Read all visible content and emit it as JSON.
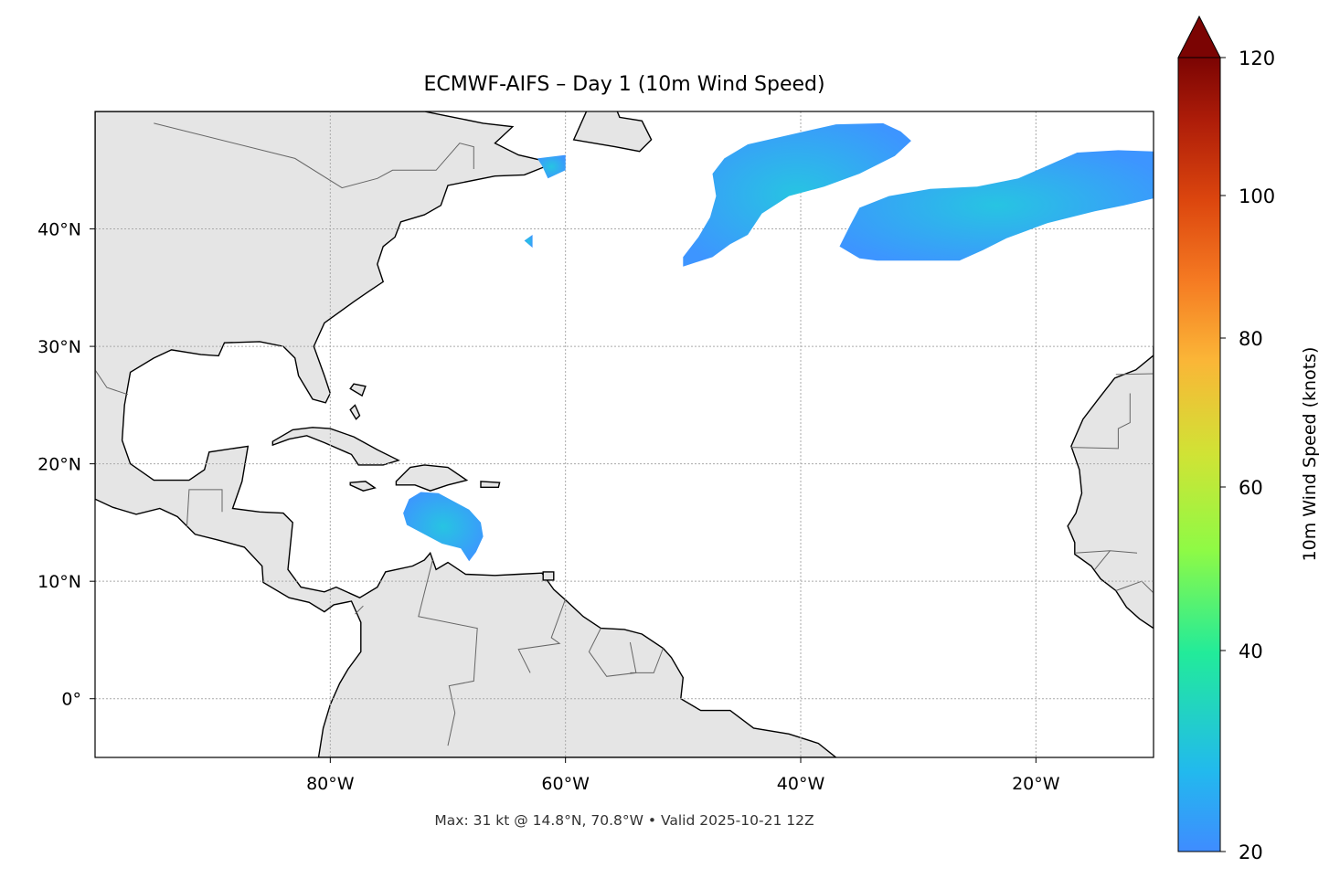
{
  "title": "ECMWF-AIFS – Day 1 (10m Wind Speed)",
  "footer": "Max: 31 kt @ 14.8°N, 70.8°W • Valid 2025-10-21 12Z",
  "map": {
    "extent": {
      "lon": [
        -100,
        -10
      ],
      "lat": [
        -5,
        50
      ]
    },
    "x_ticks": [
      {
        "value": -80,
        "label": "80°W"
      },
      {
        "value": -60,
        "label": "60°W"
      },
      {
        "value": -40,
        "label": "40°W"
      },
      {
        "value": -20,
        "label": "20°W"
      }
    ],
    "y_ticks": [
      {
        "value": 40,
        "label": "40°N"
      },
      {
        "value": 30,
        "label": "30°N"
      },
      {
        "value": 20,
        "label": "20°N"
      },
      {
        "value": 10,
        "label": "10°N"
      },
      {
        "value": 0,
        "label": "0°"
      }
    ],
    "grid": true,
    "land_color": "#e5e5e5",
    "max_wind": {
      "value_kt": 31,
      "lat": 14.8,
      "lon": -70.8
    }
  },
  "colorbar": {
    "label": "10m Wind Speed (knots)",
    "range": [
      20,
      120
    ],
    "extend": "max",
    "colormap": "turbo",
    "ticks": [
      {
        "value": 20,
        "label": "20"
      },
      {
        "value": 40,
        "label": "40"
      },
      {
        "value": 60,
        "label": "60"
      },
      {
        "value": 80,
        "label": "80"
      },
      {
        "value": 100,
        "label": "100"
      },
      {
        "value": 120,
        "label": "120"
      }
    ]
  }
}
